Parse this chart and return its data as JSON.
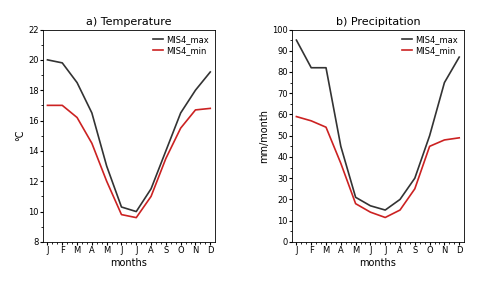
{
  "months": [
    "J",
    "F",
    "M",
    "A",
    "M",
    "J",
    "J",
    "A",
    "S",
    "O",
    "N",
    "D"
  ],
  "temp_max": [
    20.0,
    19.8,
    18.5,
    16.5,
    13.0,
    10.3,
    10.0,
    11.5,
    14.0,
    16.5,
    18.0,
    19.2
  ],
  "temp_min": [
    17.0,
    17.0,
    16.2,
    14.5,
    12.0,
    9.8,
    9.6,
    11.0,
    13.5,
    15.5,
    16.7,
    16.8
  ],
  "precip_max": [
    95.0,
    82.0,
    82.0,
    45.0,
    21.0,
    17.0,
    15.0,
    20.0,
    30.0,
    50.0,
    75.0,
    87.0
  ],
  "precip_min": [
    59.0,
    57.0,
    54.0,
    37.0,
    18.0,
    14.0,
    11.5,
    15.0,
    25.0,
    45.0,
    48.0,
    49.0
  ],
  "temp_ylim": [
    8,
    22
  ],
  "temp_yticks": [
    8,
    10,
    12,
    14,
    16,
    18,
    20,
    22
  ],
  "precip_ylim": [
    0,
    100
  ],
  "precip_yticks": [
    0,
    10,
    20,
    30,
    40,
    50,
    60,
    70,
    80,
    90,
    100
  ],
  "color_max": "#333333",
  "color_min": "#cc2222",
  "title_temp": "a) Temperature",
  "title_precip": "b) Precipitation",
  "ylabel_temp": "°C",
  "ylabel_precip": "mm/month",
  "xlabel": "months",
  "legend_labels": [
    "MIS4_max",
    "MIS4_min"
  ],
  "linewidth": 1.2,
  "title_fontsize": 8,
  "label_fontsize": 7,
  "tick_fontsize": 6,
  "legend_fontsize": 6
}
